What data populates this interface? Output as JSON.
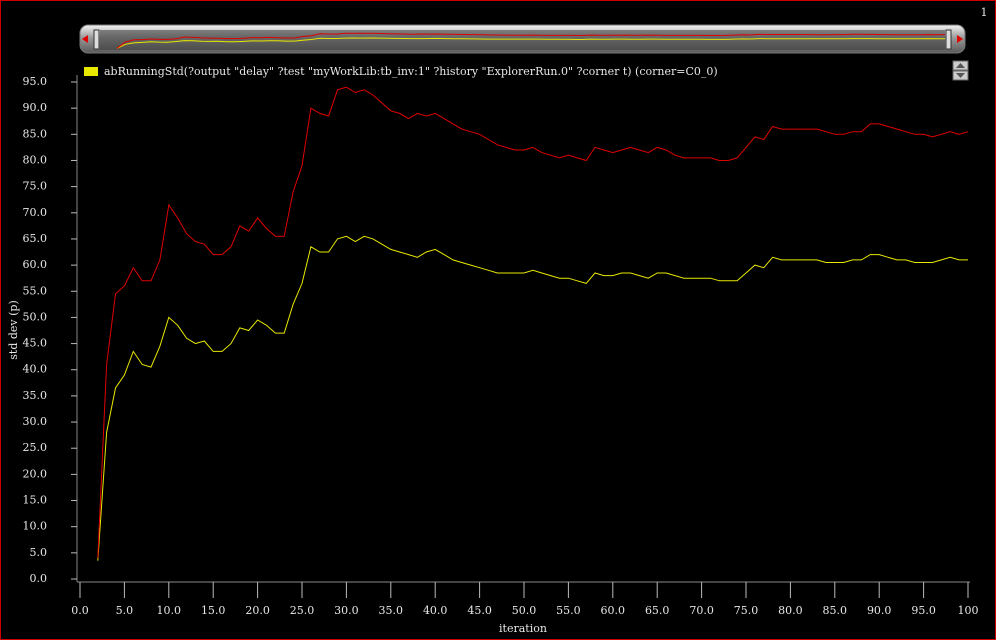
{
  "chart_data": {
    "type": "line",
    "panel_label": "1",
    "ylabel": "std dev (p)",
    "xlabel": "iteration",
    "legend": "top-left",
    "grid": false,
    "xlim": [
      0,
      100
    ],
    "ylim": [
      0,
      95
    ],
    "xticks": [
      {
        "value": 0,
        "label": "0.0"
      },
      {
        "value": 5,
        "label": "5.0"
      },
      {
        "value": 10,
        "label": "10.0"
      },
      {
        "value": 15,
        "label": "15.0"
      },
      {
        "value": 20,
        "label": "20.0"
      },
      {
        "value": 25,
        "label": "25.0"
      },
      {
        "value": 30,
        "label": "30.0"
      },
      {
        "value": 35,
        "label": "35.0"
      },
      {
        "value": 40,
        "label": "40.0"
      },
      {
        "value": 45,
        "label": "45.0"
      },
      {
        "value": 50,
        "label": "50.0"
      },
      {
        "value": 55,
        "label": "55.0"
      },
      {
        "value": 60,
        "label": "60.0"
      },
      {
        "value": 65,
        "label": "65.0"
      },
      {
        "value": 70,
        "label": "70.0"
      },
      {
        "value": 75,
        "label": "75.0"
      },
      {
        "value": 80,
        "label": "80.0"
      },
      {
        "value": 85,
        "label": "85.0"
      },
      {
        "value": 90,
        "label": "90.0"
      },
      {
        "value": 95,
        "label": "95.0"
      },
      100
    ],
    "yticks": [
      {
        "value": 0,
        "label": "0.0"
      },
      {
        "value": 5,
        "label": "5.0"
      },
      {
        "value": 10,
        "label": "10.0"
      },
      {
        "value": 15,
        "label": "15.0"
      },
      {
        "value": 20,
        "label": "20.0"
      },
      {
        "value": 25,
        "label": "25.0"
      },
      {
        "value": 30,
        "label": "30.0"
      },
      {
        "value": 35,
        "label": "35.0"
      },
      {
        "value": 40,
        "label": "40.0"
      },
      {
        "value": 45,
        "label": "45.0"
      },
      {
        "value": 50,
        "label": "50.0"
      },
      {
        "value": 55,
        "label": "55.0"
      },
      {
        "value": 60,
        "label": "60.0"
      },
      {
        "value": 65,
        "label": "65.0"
      },
      {
        "value": 70,
        "label": "70.0"
      },
      {
        "value": 75,
        "label": "75.0"
      },
      {
        "value": 80,
        "label": "80.0"
      },
      {
        "value": 85,
        "label": "85.0"
      },
      {
        "value": 90,
        "label": "90.0"
      },
      {
        "value": 95,
        "label": "95.0"
      }
    ],
    "x": [
      2,
      3,
      4,
      5,
      6,
      7,
      8,
      9,
      10,
      11,
      12,
      13,
      14,
      15,
      16,
      17,
      18,
      19,
      20,
      21,
      22,
      23,
      24,
      25,
      26,
      27,
      28,
      29,
      30,
      31,
      32,
      33,
      34,
      35,
      36,
      37,
      38,
      39,
      40,
      41,
      42,
      43,
      44,
      45,
      46,
      47,
      48,
      49,
      50,
      51,
      52,
      53,
      54,
      55,
      56,
      57,
      58,
      59,
      60,
      61,
      62,
      63,
      64,
      65,
      66,
      67,
      68,
      69,
      70,
      71,
      72,
      73,
      74,
      75,
      76,
      77,
      78,
      79,
      80,
      81,
      82,
      83,
      84,
      85,
      86,
      87,
      88,
      89,
      90,
      91,
      92,
      93,
      94,
      95,
      96,
      97,
      98,
      99,
      100
    ],
    "series": [
      {
        "name": "abRunningStd(?output \"delay\" ?test \"myWorkLib:tb_inv:1\" ?history \"ExplorerRun.0\" ?corner t) (corner=C0_0)",
        "color": "#e8e800",
        "values": [
          3.5,
          28,
          36.5,
          39,
          43.5,
          41,
          40.5,
          44.5,
          50,
          48.5,
          46,
          45,
          45.5,
          43.5,
          43.5,
          45,
          48,
          47.5,
          49.5,
          48.5,
          47,
          47,
          52.5,
          56.5,
          63.5,
          62.5,
          62.5,
          65,
          65.5,
          64.5,
          65.5,
          65,
          64,
          63,
          62.5,
          62,
          61.5,
          62.5,
          63,
          62,
          61,
          60.5,
          60,
          59.5,
          59,
          58.5,
          58.5,
          58.5,
          58.5,
          59,
          58.5,
          58,
          57.5,
          57.5,
          57,
          56.5,
          58.5,
          58,
          58,
          58.5,
          58.5,
          58,
          57.5,
          58.5,
          58.5,
          58,
          57.5,
          57.5,
          57.5,
          57.5,
          57,
          57,
          57,
          58.5,
          60,
          59.5,
          61.5,
          61,
          61,
          61,
          61,
          61,
          60.5,
          60.5,
          60.5,
          61,
          61,
          62,
          62,
          61.5,
          61,
          61,
          60.5,
          60.5,
          60.5,
          61,
          61.5,
          61,
          61
        ]
      },
      {
        "color": "#e00000",
        "values": [
          4,
          41,
          54.5,
          56,
          59.5,
          57,
          57,
          61,
          71.5,
          69,
          66,
          64.5,
          64,
          62,
          62,
          63.5,
          67.5,
          66.5,
          69,
          67,
          65.5,
          65.5,
          74,
          79,
          90,
          89,
          88.5,
          93.5,
          94,
          93,
          93.5,
          92.5,
          91,
          89.5,
          89,
          88,
          89,
          88.5,
          89,
          88,
          87,
          86,
          85.5,
          85,
          84,
          83,
          82.5,
          82,
          82,
          82.5,
          81.5,
          81,
          80.5,
          81,
          80.5,
          80,
          82.5,
          82,
          81.5,
          82,
          82.5,
          82,
          81.5,
          82.5,
          82,
          81,
          80.5,
          80.5,
          80.5,
          80.5,
          80,
          80,
          80.5,
          82.5,
          84.5,
          84,
          86.5,
          86,
          86,
          86,
          86,
          86,
          85.5,
          85,
          85,
          85.5,
          85.5,
          87,
          87,
          86.5,
          86,
          85.5,
          85,
          85,
          84.5,
          85,
          85.5,
          85,
          85.5
        ]
      }
    ]
  }
}
